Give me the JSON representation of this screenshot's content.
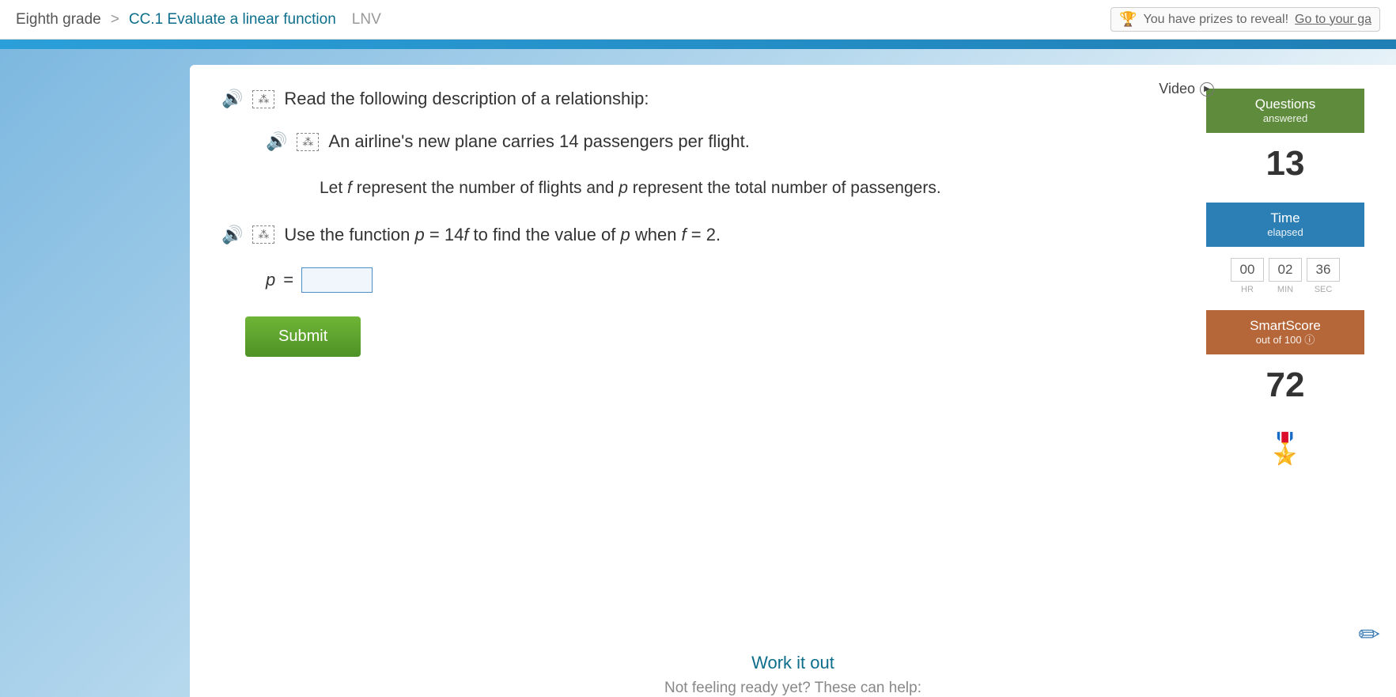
{
  "breadcrumb": {
    "grade": "Eighth grade",
    "separator": ">",
    "topic": "CC.1 Evaluate a linear function",
    "code": "LNV"
  },
  "prizes": {
    "text": "You have prizes to reveal!",
    "link": "Go to your ga"
  },
  "video": {
    "label": "Video"
  },
  "question": {
    "intro": "Read the following description of a relationship:",
    "scenario1": "An airline's new plane carries 14 passengers per flight.",
    "scenario2_html": "Let <em>f</em> represent the number of flights and <em>p</em> represent the total number of passengers.",
    "instruction_html": "Use the function <em>p</em> = 14<em>f</em> to find the value of <em>p</em> when <em>f</em> = 2.",
    "answer_var": "p",
    "answer_eq": "=",
    "answer_value": ""
  },
  "buttons": {
    "submit": "Submit"
  },
  "help": {
    "work_it_out": "Work it out",
    "not_ready": "Not feeling ready yet? These can help:"
  },
  "stats": {
    "questions": {
      "label": "Questions",
      "sublabel": "answered",
      "value": "13"
    },
    "time": {
      "label": "Time",
      "sublabel": "elapsed",
      "hr": "00",
      "min": "02",
      "sec": "36",
      "hr_label": "HR",
      "min_label": "MIN",
      "sec_label": "SEC"
    },
    "smartscore": {
      "label": "SmartScore",
      "sublabel": "out of 100",
      "value": "72"
    }
  }
}
